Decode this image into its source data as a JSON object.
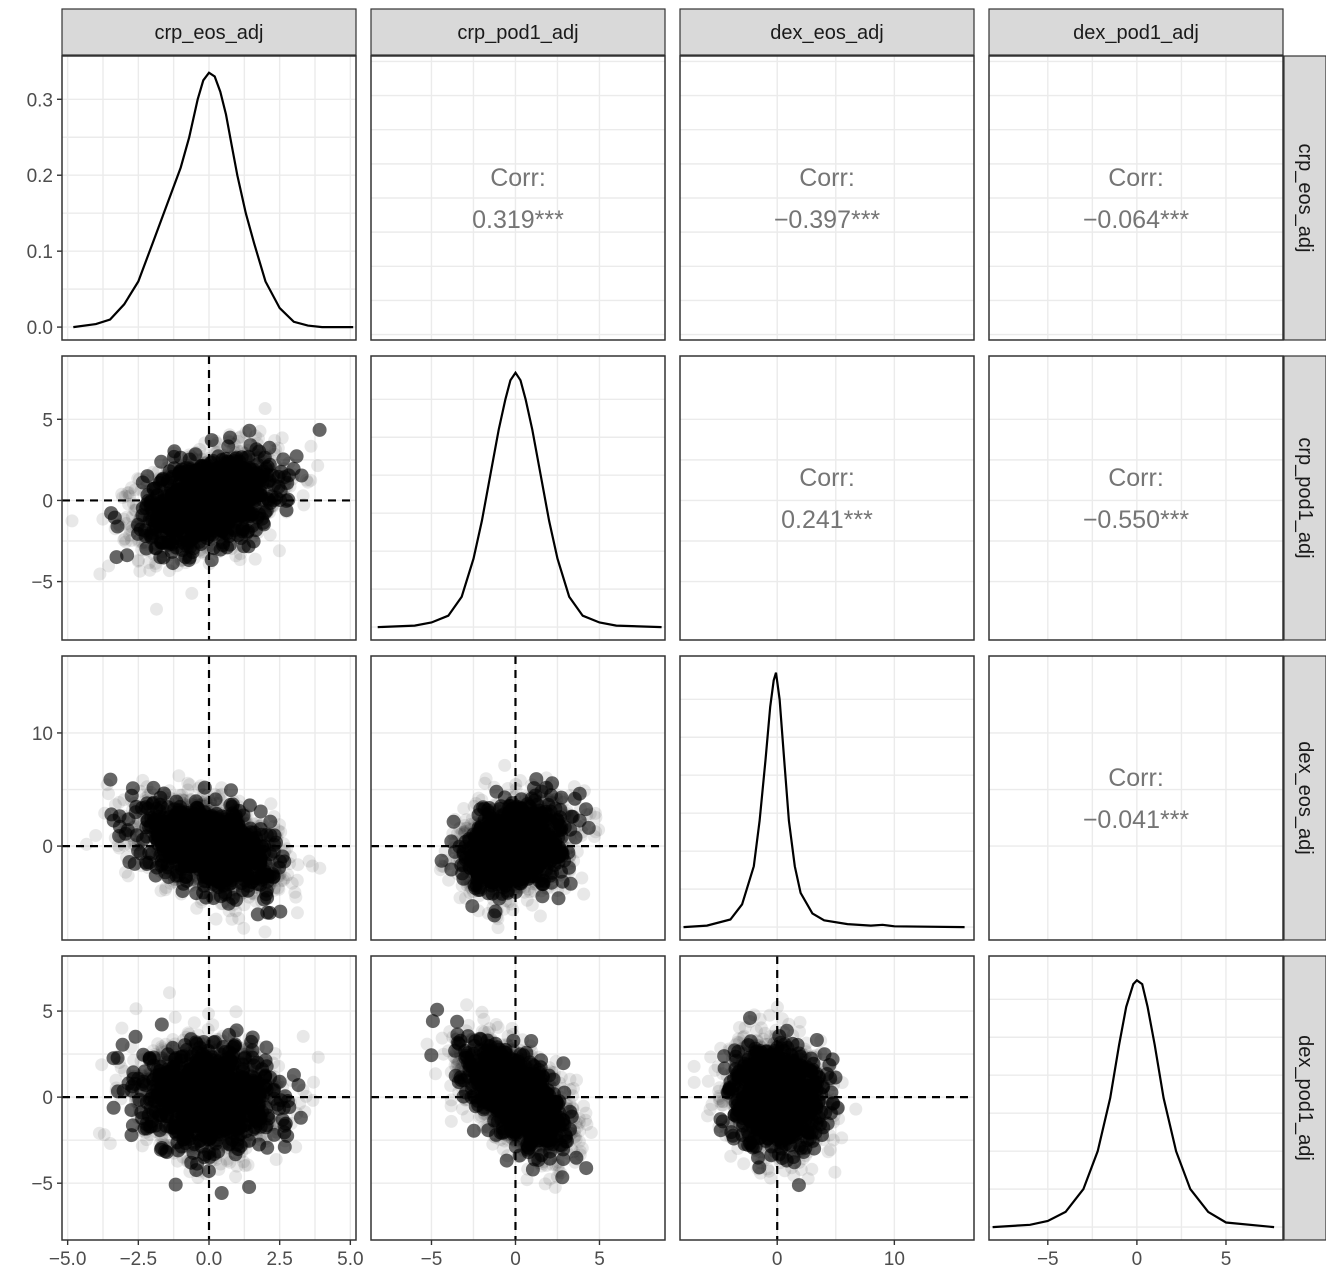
{
  "chart_data": {
    "type": "scatter",
    "layout": "pairs-matrix",
    "variables": [
      "crp_eos_adj",
      "crp_pod1_adj",
      "dex_eos_adj",
      "dex_pod1_adj"
    ],
    "grid": true,
    "axes": {
      "crp_eos_adj": {
        "range": [
          -5.2,
          5.2
        ],
        "ticks": [
          -5.0,
          -2.5,
          0.0,
          2.5,
          5.0
        ],
        "tick_labels": [
          "−5.0",
          "−2.5",
          "0.0",
          "2.5",
          "5.0"
        ]
      },
      "crp_pod1_adj": {
        "range": [
          -8.6,
          8.9
        ],
        "ticks": [
          -5,
          0,
          5
        ],
        "tick_labels": [
          "−5",
          "0",
          "5"
        ]
      },
      "dex_eos_adj": {
        "range": [
          -8.3,
          16.8
        ],
        "ticks": [
          0,
          10
        ],
        "tick_labels": [
          "0",
          "10"
        ]
      },
      "dex_pod1_adj": {
        "range": [
          -8.3,
          8.2
        ],
        "ticks": [
          -5,
          0,
          5
        ],
        "tick_labels": [
          "−5",
          "0",
          "5"
        ]
      }
    },
    "density_y_axis": {
      "range": [
        -0.017,
        0.357
      ],
      "ticks": [
        0.0,
        0.1,
        0.2,
        0.3
      ],
      "tick_labels": [
        "0.0",
        "0.1",
        "0.2",
        "0.3"
      ]
    },
    "densities": [
      {
        "variable": "crp_eos_adj",
        "x": [
          -4.8,
          -4.0,
          -3.5,
          -3.0,
          -2.5,
          -2.0,
          -1.5,
          -1.2,
          -1.0,
          -0.7,
          -0.4,
          -0.2,
          0.0,
          0.2,
          0.4,
          0.6,
          0.8,
          1.0,
          1.3,
          1.6,
          2.0,
          2.5,
          3.0,
          3.5,
          4.0,
          5.1
        ],
        "y": [
          0.0,
          0.004,
          0.01,
          0.03,
          0.06,
          0.11,
          0.16,
          0.19,
          0.21,
          0.25,
          0.3,
          0.325,
          0.335,
          0.33,
          0.31,
          0.28,
          0.24,
          0.2,
          0.15,
          0.11,
          0.06,
          0.025,
          0.007,
          0.002,
          0.0,
          0.0
        ]
      },
      {
        "variable": "crp_pod1_adj",
        "x": [
          -8.2,
          -6.0,
          -5.0,
          -4.0,
          -3.2,
          -2.5,
          -2.0,
          -1.5,
          -1.0,
          -0.6,
          -0.3,
          0.0,
          0.3,
          0.6,
          1.0,
          1.5,
          2.0,
          2.5,
          3.2,
          4.0,
          5.0,
          6.0,
          8.7
        ],
        "y": [
          0.0,
          0.002,
          0.006,
          0.015,
          0.04,
          0.09,
          0.14,
          0.2,
          0.26,
          0.3,
          0.325,
          0.335,
          0.325,
          0.3,
          0.26,
          0.2,
          0.14,
          0.09,
          0.04,
          0.015,
          0.006,
          0.002,
          0.0
        ]
      },
      {
        "variable": "dex_eos_adj",
        "x": [
          -8.0,
          -6.0,
          -4.0,
          -3.0,
          -2.0,
          -1.5,
          -1.0,
          -0.6,
          -0.3,
          -0.1,
          0.2,
          0.6,
          1.0,
          1.5,
          2.0,
          3.0,
          4.0,
          6.0,
          8.0,
          9.0,
          10.0,
          16.0
        ],
        "y": [
          0.0,
          0.002,
          0.01,
          0.03,
          0.08,
          0.14,
          0.22,
          0.29,
          0.325,
          0.335,
          0.3,
          0.22,
          0.14,
          0.08,
          0.045,
          0.018,
          0.009,
          0.004,
          0.002,
          0.003,
          0.001,
          0.0
        ]
      },
      {
        "variable": "dex_pod1_adj",
        "x": [
          -8.1,
          -6.0,
          -5.0,
          -4.0,
          -3.0,
          -2.2,
          -1.5,
          -1.0,
          -0.6,
          -0.2,
          0.0,
          0.3,
          0.6,
          1.0,
          1.5,
          2.2,
          3.0,
          4.0,
          5.0,
          7.7
        ],
        "y": [
          0.0,
          0.003,
          0.008,
          0.02,
          0.05,
          0.1,
          0.17,
          0.24,
          0.29,
          0.32,
          0.325,
          0.32,
          0.29,
          0.24,
          0.17,
          0.1,
          0.05,
          0.02,
          0.006,
          0.0
        ]
      }
    ],
    "correlations": [
      {
        "row": "crp_eos_adj",
        "col": "crp_pod1_adj",
        "label": "Corr:",
        "value": "0.319***"
      },
      {
        "row": "crp_eos_adj",
        "col": "dex_eos_adj",
        "label": "Corr:",
        "value": "−0.397***"
      },
      {
        "row": "crp_eos_adj",
        "col": "dex_pod1_adj",
        "label": "Corr:",
        "value": "−0.064***"
      },
      {
        "row": "crp_pod1_adj",
        "col": "dex_eos_adj",
        "label": "Corr:",
        "value": "0.241***"
      },
      {
        "row": "crp_pod1_adj",
        "col": "dex_pod1_adj",
        "label": "Corr:",
        "value": "−0.550***"
      },
      {
        "row": "dex_eos_adj",
        "col": "dex_pod1_adj",
        "label": "Corr:",
        "value": "−0.041***"
      }
    ],
    "scatter_panels": [
      {
        "x": "crp_eos_adj",
        "y": "crp_pod1_adj",
        "corr": 0.319
      },
      {
        "x": "crp_eos_adj",
        "y": "dex_eos_adj",
        "corr": -0.397
      },
      {
        "x": "crp_pod1_adj",
        "y": "dex_eos_adj",
        "corr": 0.241
      },
      {
        "x": "crp_eos_adj",
        "y": "dex_pod1_adj",
        "corr": -0.064
      },
      {
        "x": "crp_pod1_adj",
        "y": "dex_pod1_adj",
        "corr": -0.55
      },
      {
        "x": "dex_eos_adj",
        "y": "dex_pod1_adj",
        "corr": -0.041
      }
    ],
    "reference_lines": {
      "x": 0,
      "y": 0,
      "style": "dashed"
    },
    "point_color": "#000000"
  }
}
